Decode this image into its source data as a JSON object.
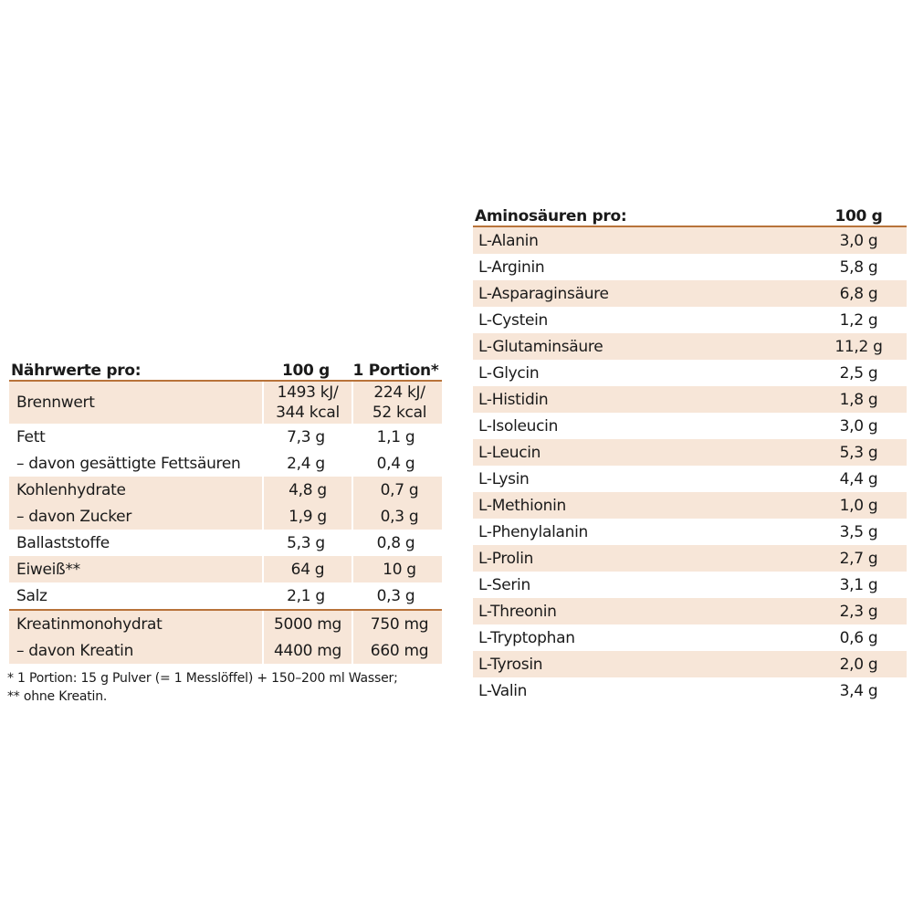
{
  "nutrition": {
    "header": {
      "label": "Nährwerte pro:",
      "col_100g": "100 g",
      "col_portion": "1 Portion*"
    },
    "rows": [
      {
        "label": "Brennwert",
        "v100": [
          "1493 kJ/",
          "344 kcal"
        ],
        "portion": [
          "224 kJ/",
          "52 kcal"
        ],
        "shaded": true
      },
      {
        "label": "Fett",
        "v100": [
          "7,3 g"
        ],
        "portion": [
          "1,1 g"
        ],
        "shaded": false
      },
      {
        "label": "– davon gesättigte Fettsäuren",
        "v100": [
          "2,4 g"
        ],
        "portion": [
          "0,4 g"
        ],
        "shaded": false
      },
      {
        "label": "Kohlenhydrate",
        "v100": [
          "4,8 g"
        ],
        "portion": [
          "0,7 g"
        ],
        "shaded": true
      },
      {
        "label": "– davon Zucker",
        "v100": [
          "1,9 g"
        ],
        "portion": [
          "0,3 g"
        ],
        "shaded": true
      },
      {
        "label": "Ballaststoffe",
        "v100": [
          "5,3 g"
        ],
        "portion": [
          "0,8 g"
        ],
        "shaded": false
      },
      {
        "label": "Eiweiß**",
        "v100": [
          "64 g"
        ],
        "portion": [
          "10 g"
        ],
        "shaded": true
      },
      {
        "label": "Salz",
        "v100": [
          "2,1 g"
        ],
        "portion": [
          "0,3 g"
        ],
        "shaded": false
      },
      {
        "label": "Kreatinmonohydrat",
        "v100": [
          "5000 mg"
        ],
        "portion": [
          "750 mg"
        ],
        "shaded": true
      },
      {
        "label": "– davon Kreatin",
        "v100": [
          "4400 mg"
        ],
        "portion": [
          "660 mg"
        ],
        "shaded": true
      }
    ],
    "footnotes": [
      "* 1 Portion: 15 g Pulver (= 1 Messlöffel) + 150–200 ml Wasser;",
      "** ohne Kreatin."
    ]
  },
  "amino": {
    "header": {
      "label": "Aminosäuren pro:",
      "col_100g": "100 g"
    },
    "rows": [
      {
        "label": "L-Alanin",
        "value": "3,0 g"
      },
      {
        "label": "L-Arginin",
        "value": "5,8 g"
      },
      {
        "label": "L-Asparaginsäure",
        "value": "6,8 g"
      },
      {
        "label": "L-Cystein",
        "value": "1,2 g"
      },
      {
        "label": "L-Glutaminsäure",
        "value": "11,2 g"
      },
      {
        "label": "L-Glycin",
        "value": "2,5 g"
      },
      {
        "label": "L-Histidin",
        "value": "1,8 g"
      },
      {
        "label": "L-Isoleucin",
        "value": "3,0 g"
      },
      {
        "label": "L-Leucin",
        "value": "5,3 g"
      },
      {
        "label": "L-Lysin",
        "value": "4,4 g"
      },
      {
        "label": "L-Methionin",
        "value": "1,0 g"
      },
      {
        "label": "L-Phenylalanin",
        "value": "3,5 g"
      },
      {
        "label": "L-Prolin",
        "value": "2,7 g"
      },
      {
        "label": "L-Serin",
        "value": "3,1 g"
      },
      {
        "label": "L-Threonin",
        "value": "2,3 g"
      },
      {
        "label": "L-Tryptophan",
        "value": "0,6 g"
      },
      {
        "label": "L-Tyrosin",
        "value": "2,0 g"
      },
      {
        "label": "L-Valin",
        "value": "3,4 g"
      }
    ]
  },
  "colors": {
    "accent_rule": "#b8733a",
    "row_shade": "#f7e6d8"
  }
}
